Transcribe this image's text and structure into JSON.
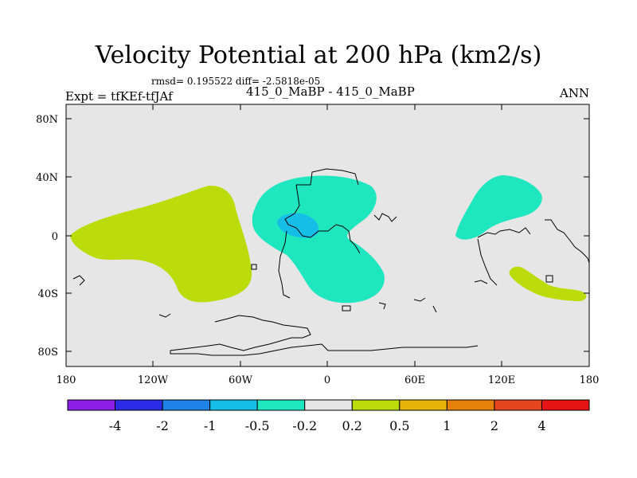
{
  "title": "Velocity Potential at 200 hPa (km2/s)",
  "stats": "rmsd= 0.195522 diff= -2.5818e-05",
  "left_label": "Expt = tfKEf-tfJAf",
  "center_label": "415_0_MaBP - 415_0_MaBP",
  "right_label": "ANN",
  "lat_ticks": [
    "80N",
    "40N",
    "0",
    "40S",
    "80S"
  ],
  "lon_ticks": [
    "180",
    "120W",
    "60W",
    "0",
    "60E",
    "120E",
    "180"
  ],
  "colorbar": {
    "colors": [
      "#8c1ee6",
      "#2c2ce6",
      "#1e82e6",
      "#14bee6",
      "#1ee6be",
      "#e6e6e6",
      "#bcdc0a",
      "#e6b40a",
      "#e6820a",
      "#e6461e",
      "#e61414"
    ],
    "labels": [
      "-4",
      "-2",
      "-1",
      "-0.5",
      "-0.2",
      "0.2",
      "0.5",
      "1",
      "2",
      "4"
    ]
  },
  "colors": {
    "ocean": "#e6e6e6",
    "positive": "#bcdc0a",
    "negative": "#1ee6be",
    "strong_negative": "#14bee6"
  }
}
